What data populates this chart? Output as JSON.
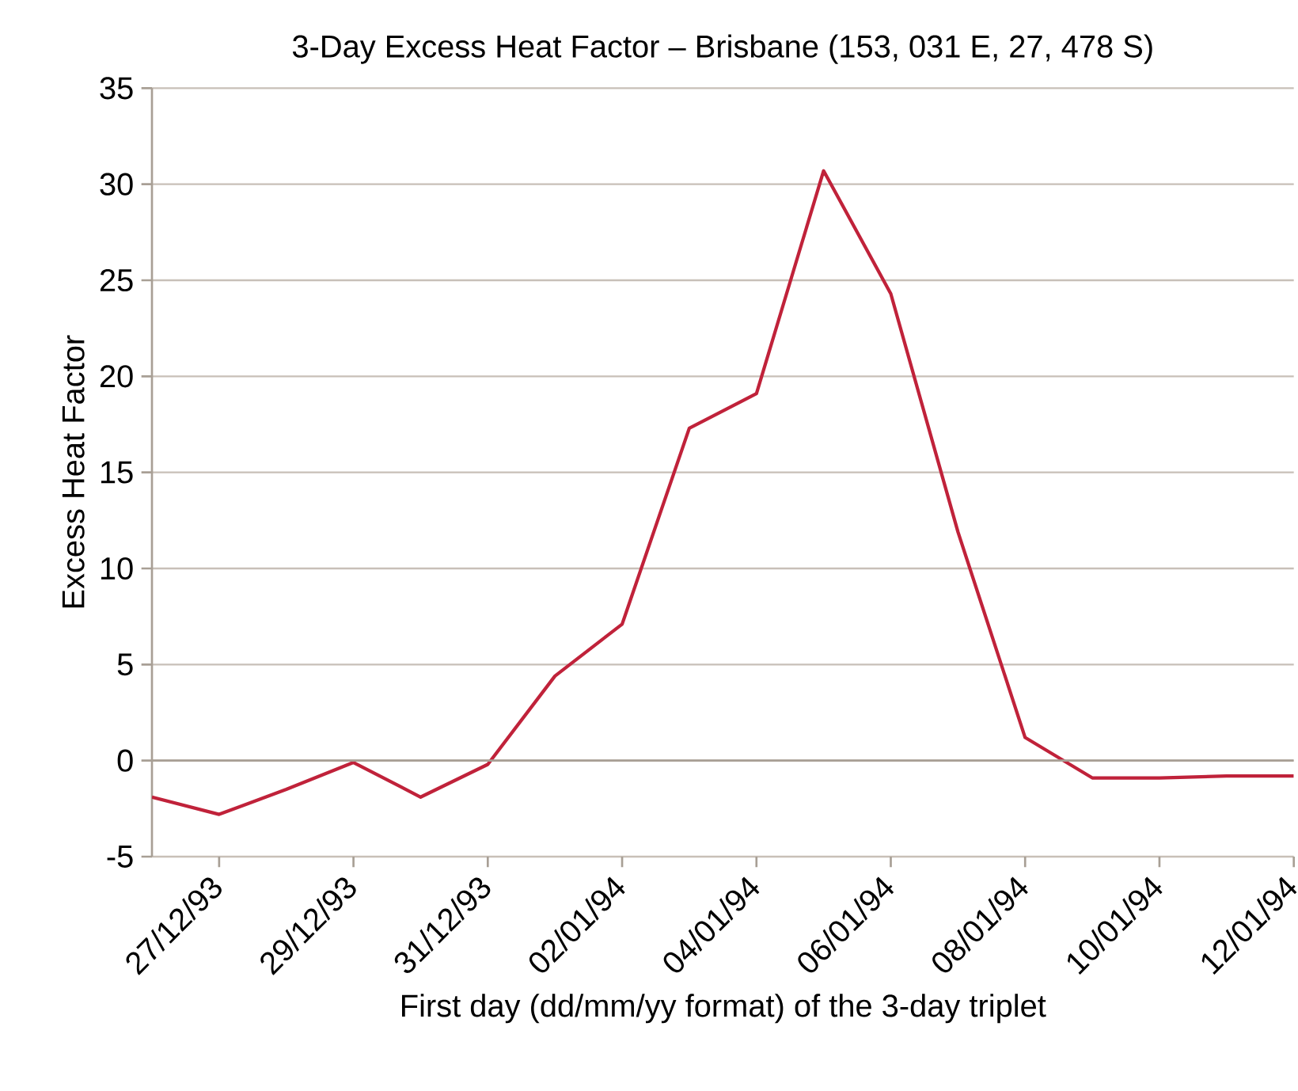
{
  "chart_data": {
    "type": "line",
    "title": "3-Day Excess Heat Factor – Brisbane (153, 031 E, 27, 478 S)",
    "xlabel": "First day (dd/mm/yy format) of the 3-day triplet",
    "ylabel": "Excess Heat Factor",
    "categories": [
      null,
      "27/12/93",
      null,
      "29/12/93",
      null,
      "31/12/93",
      null,
      "02/01/94",
      null,
      "04/01/94",
      null,
      "06/01/94",
      null,
      "08/01/94",
      null,
      "10/01/94",
      null,
      "12/01/94"
    ],
    "series": [
      {
        "color": "#c0223a",
        "values": [
          -1.9,
          -2.8,
          -1.5,
          -0.1,
          -1.9,
          -0.2,
          4.4,
          7.1,
          17.3,
          19.1,
          30.7,
          24.3,
          11.9,
          1.2,
          -0.9,
          -0.9,
          -0.8,
          -0.8
        ]
      }
    ],
    "ylim": [
      -5,
      35
    ],
    "yticks": [
      -5,
      0,
      5,
      10,
      15,
      20,
      25,
      30,
      35
    ],
    "grid": "y",
    "marker": "none",
    "line_style": "solid"
  }
}
